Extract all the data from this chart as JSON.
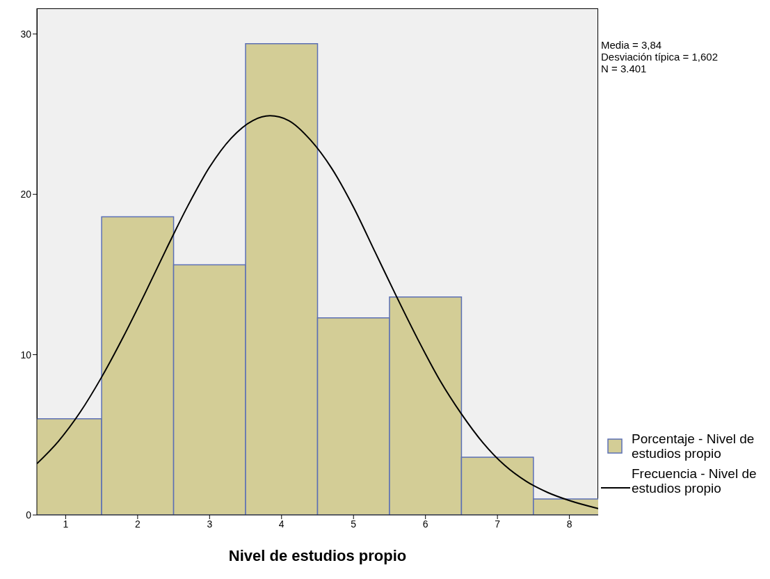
{
  "chart_data": {
    "type": "histogram",
    "xlabel": "Nivel de estudios propio",
    "bins": [
      0.5,
      1.5,
      2.5,
      3.5,
      4.5,
      5.5,
      6.5,
      7.5,
      8.5
    ],
    "series": [
      {
        "name": "Porcentaje - Nivel de estudios propio",
        "color": "#d3cd96",
        "values": [
          6.0,
          18.6,
          15.6,
          29.4,
          12.3,
          13.6,
          3.6,
          1.0
        ]
      },
      {
        "type": "line",
        "name": "Frecuencia - Nivel de estudios propio",
        "color": "#000000",
        "x": [
          0.6,
          0.9,
          1.2,
          1.5,
          1.8,
          2.1,
          2.4,
          2.7,
          3.0,
          3.3,
          3.6,
          3.84,
          4.1,
          4.4,
          4.7,
          5.0,
          5.3,
          5.6,
          5.9,
          6.2,
          6.5,
          6.8,
          7.1,
          7.4,
          7.7,
          8.0,
          8.4
        ],
        "values": [
          3.2,
          4.6,
          6.4,
          8.6,
          11.1,
          13.8,
          16.6,
          19.3,
          21.7,
          23.5,
          24.6,
          24.9,
          24.6,
          23.4,
          21.6,
          19.2,
          16.4,
          13.6,
          10.9,
          8.4,
          6.3,
          4.5,
          3.1,
          2.1,
          1.4,
          0.9,
          0.4
        ]
      }
    ],
    "xlim": [
      0.6,
      8.4
    ],
    "xticks": [
      1,
      2,
      3,
      4,
      5,
      6,
      7,
      8
    ],
    "ylim": [
      0,
      31.6
    ],
    "yticks": [
      0,
      10,
      20,
      30
    ],
    "grid": false,
    "legend": "right",
    "marker": "none",
    "annotations": [
      "Media = 3,84",
      "Desviación típica = 1,602",
      "N = 3.401"
    ]
  }
}
